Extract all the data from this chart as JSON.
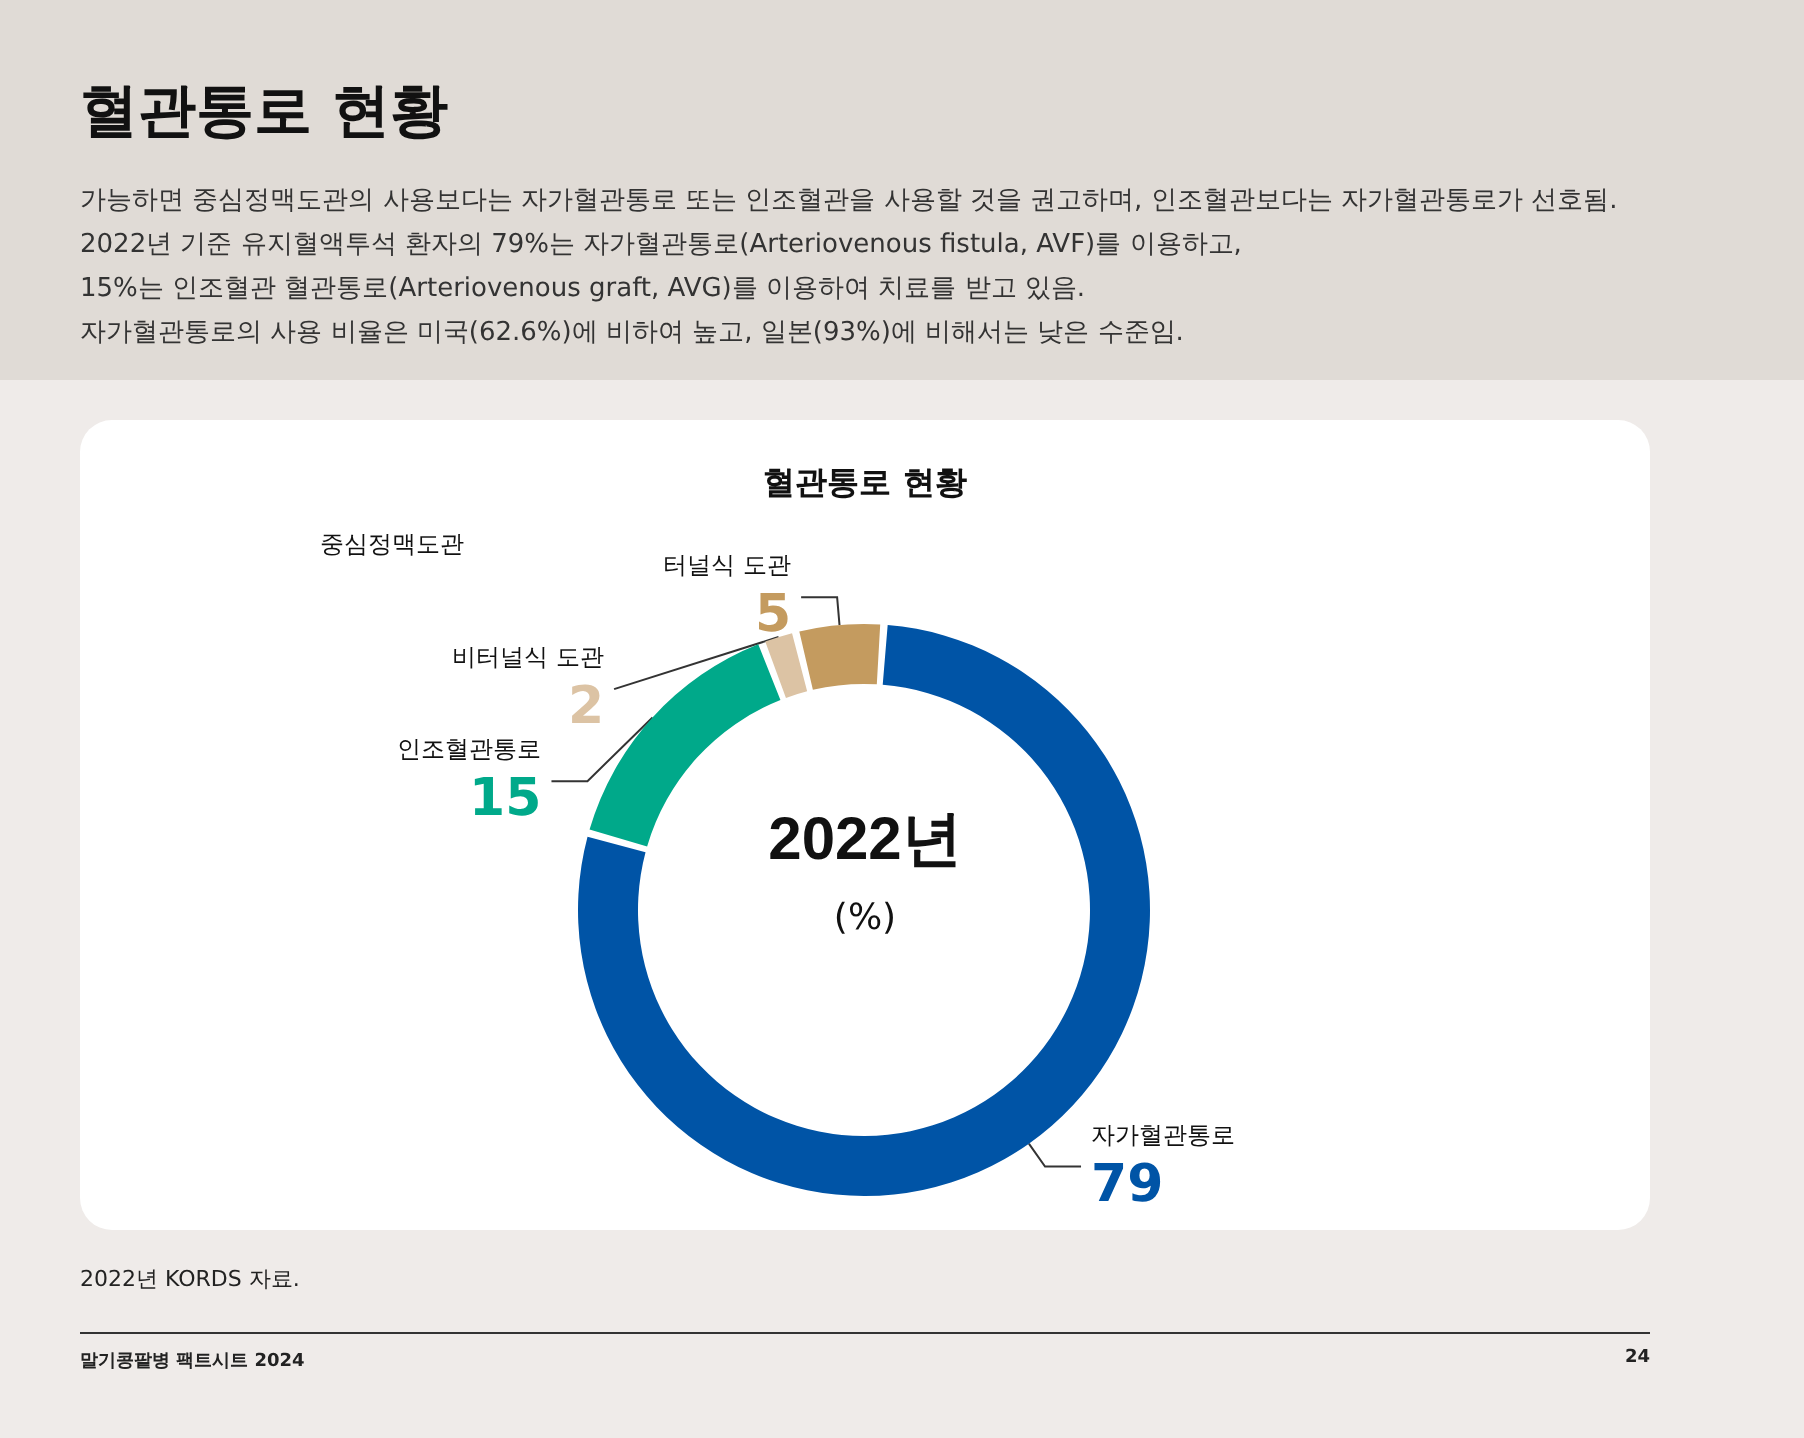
{
  "chart_data": {
    "type": "donut",
    "title": "혈관통로 현황",
    "subtitle": "가능하면 중심정맥도관의 사용보다는 자가혈관통로 또는 인조혈관을 사용할 것을 권고하며, 인조혈관보다는 자가혈관통로가 선호됨.\n2022년 기준 유지혈액투석 환자의 79%는 자가혈관통로(Arteriovenous fistula, AVF)를 이용하고,\n15%는 인조혈관 혈관통로(Arteriovenous graft, AVG)를 이용하여 치료를 받고 있음.\n자가혈관통로의 사용 비율은 미국(62.6%)에 비하여 높고, 일본(93%)에 비해서는 낮은 수준임.",
    "categories": [
      "자가혈관통로",
      "인조혈관통로",
      "비터널식 도관",
      "터널식 도관"
    ],
    "values": [
      79,
      15,
      2,
      5
    ],
    "colors": [
      "#0054a6",
      "#00a98a",
      "#dcc3a4",
      "#c49b5f"
    ],
    "data_labels": true,
    "annotations": [
      "혈관통로 현황",
      "2022년",
      "(%)",
      "중심정맥도관",
      "2022년 KORDS 자료.",
      "말기콩팥병 팩트시트 2024",
      "24"
    ]
  }
}
